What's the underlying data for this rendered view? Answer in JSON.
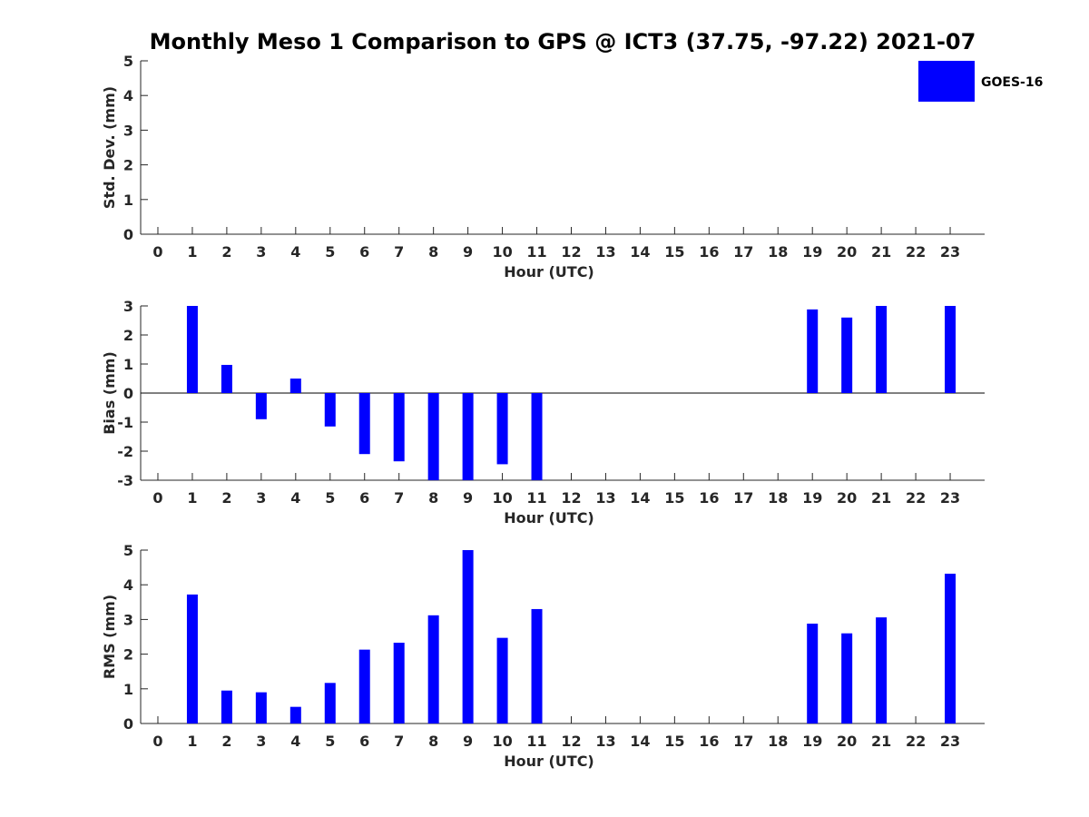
{
  "title": "Monthly Meso 1 Comparison to GPS @ ICT3 (37.75, -97.22) 2021-07",
  "legend": {
    "label": "GOES-16",
    "color": "#0000ff",
    "placement": "top-right"
  },
  "chart_data": [
    {
      "type": "bar",
      "ylabel": "Std. Dev. (mm)",
      "xlabel": "Hour (UTC)",
      "ylim": [
        0,
        5
      ],
      "yticks": [
        0,
        1,
        2,
        3,
        4,
        5
      ],
      "xticks": [
        "0",
        "1",
        "2",
        "3",
        "4",
        "5",
        "6",
        "7",
        "8",
        "9",
        "10",
        "11",
        "12",
        "13",
        "14",
        "15",
        "16",
        "17",
        "18",
        "19",
        "20",
        "21",
        "22",
        "23"
      ],
      "x": [],
      "values": []
    },
    {
      "type": "bar",
      "ylabel": "Bias (mm)",
      "xlabel": "Hour (UTC)",
      "ylim": [
        -3,
        3
      ],
      "yticks": [
        -3,
        -2,
        -1,
        0,
        1,
        2,
        3
      ],
      "xticks": [
        "0",
        "1",
        "2",
        "3",
        "4",
        "5",
        "6",
        "7",
        "8",
        "9",
        "10",
        "11",
        "12",
        "13",
        "14",
        "15",
        "16",
        "17",
        "18",
        "19",
        "20",
        "21",
        "22",
        "23"
      ],
      "zero_line": true,
      "x": [
        1,
        2,
        3,
        4,
        5,
        6,
        7,
        8,
        9,
        10,
        11,
        19,
        20,
        21,
        23
      ],
      "values": [
        3.0,
        0.97,
        -0.9,
        0.5,
        -1.15,
        -2.1,
        -2.35,
        -3.0,
        -3.0,
        -2.45,
        -3.0,
        2.88,
        2.6,
        3.0,
        3.0
      ]
    },
    {
      "type": "bar",
      "ylabel": "RMS (mm)",
      "xlabel": "Hour (UTC)",
      "ylim": [
        0,
        5
      ],
      "yticks": [
        0,
        1,
        2,
        3,
        4,
        5
      ],
      "xticks": [
        "0",
        "1",
        "2",
        "3",
        "4",
        "5",
        "6",
        "7",
        "8",
        "9",
        "10",
        "11",
        "12",
        "13",
        "14",
        "15",
        "16",
        "17",
        "18",
        "19",
        "20",
        "21",
        "22",
        "23"
      ],
      "x": [
        1,
        2,
        3,
        4,
        5,
        6,
        7,
        8,
        9,
        10,
        11,
        19,
        20,
        21,
        23
      ],
      "values": [
        3.72,
        0.95,
        0.9,
        0.48,
        1.17,
        2.13,
        2.33,
        3.12,
        5.0,
        2.47,
        3.3,
        2.88,
        2.6,
        3.06,
        4.32
      ]
    }
  ]
}
